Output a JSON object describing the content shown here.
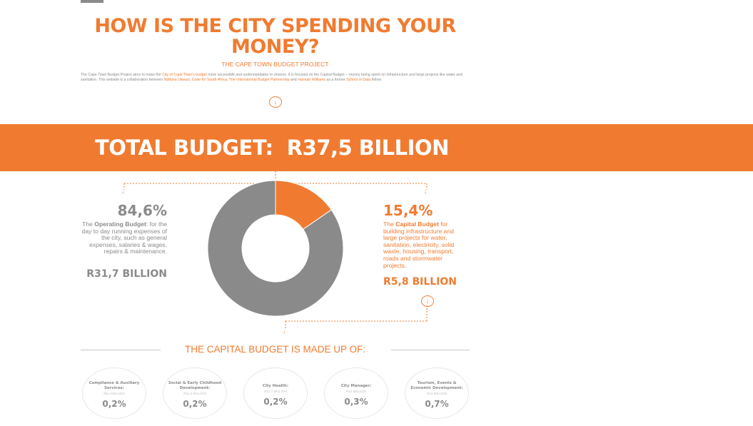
{
  "title_line1": "HOW IS THE CITY SPENDING YOUR",
  "title_line2": "MONEY?",
  "subtitle": "THE CAPE TOWN BUDGET PROJECT",
  "intro": {
    "p1": "The Cape Town Budget Project aims to make the ",
    "l1": "City of Cape Town's budget",
    "p2": " more accessible and understandable to citizens. It is focused on the Capital Budget -- money being spent on infrastructure and large projects like water and sanitation. This website is a collaboration between ",
    "l2": "Ndifuna Ukwazi",
    "p3": ", ",
    "l3": "Code for South Africa",
    "p4": ", ",
    "l4": "The International Budget Partnership",
    "p5": " and ",
    "l5": "Hannah Williams",
    "p6": " as a former ",
    "l6": "School of Data",
    "p7": " fellow."
  },
  "arrow_glyph": "↓",
  "connector_glyph": "↓",
  "total_banner": "TOTAL BUDGET:  R37,5 BILLION",
  "operating": {
    "percent": "84,6%",
    "desc_pre": "The ",
    "desc_bold": "Operating Budget",
    "desc_post": ": for the day to day running expenses of the city, such as general expenses, salaries & wages, repairs & maintenance.",
    "amount": "R31,7 BILLION"
  },
  "capital": {
    "percent": "15,4%",
    "desc_pre": "The ",
    "desc_bold": "Capital Budget",
    "desc_post": " for building infrastructure and large projects for water, sanitation, electricity, solid waste, housing, transport, roads and stormwater projects.",
    "amount": "R5,8 BILLION"
  },
  "made_up_heading": "THE CAPITAL BUDGET IS MADE UP OF:",
  "colors": {
    "orange": "#f07b30",
    "grey": "#8a8a8a"
  },
  "chart_data": [
    {
      "type": "pie",
      "donut": true,
      "categories": [
        "Capital Budget",
        "Operating Budget"
      ],
      "values": [
        15.4,
        84.6
      ],
      "amounts": [
        "R5,8 BILLION",
        "R31,7 BILLION"
      ],
      "colors": [
        "#f07b30",
        "#8a8a8a"
      ]
    },
    {
      "type": "table",
      "rows": [
        {
          "name": "Compliance & Auxiliary Services:",
          "amount": "R5,4 MILLION",
          "percent": "0,2%"
        },
        {
          "name": "Social & Early Childhood Development:",
          "amount": "R11,2 MILLION",
          "percent": "0,2%"
        },
        {
          "name": "City Health:",
          "amount": "R11,7 MILLION",
          "percent": "0,2%"
        },
        {
          "name": "City Manager:",
          "amount": "R15 MILLION",
          "percent": "0,3%"
        },
        {
          "name": "Tourism, Events & Economic Development:",
          "amount": "R41 MILLION",
          "percent": "0,7%"
        }
      ]
    }
  ]
}
